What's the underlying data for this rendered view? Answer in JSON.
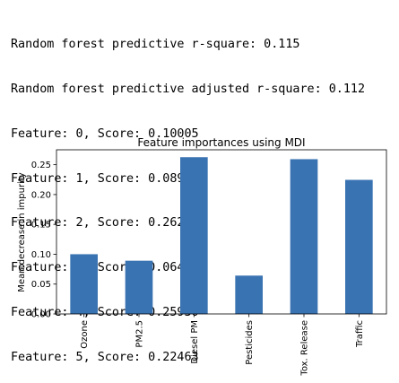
{
  "console_lines": [
    "Random forest predictive r-square: 0.115",
    "Random forest predictive adjusted r-square: 0.112",
    "Feature: 0, Score: 0.10005",
    "Feature: 1, Score: 0.08919",
    "Feature: 2, Score: 0.26262",
    "Feature: 3, Score: 0.06422",
    "Feature: 4, Score: 0.25930",
    "Feature: 5, Score: 0.22463"
  ],
  "chart_data": {
    "type": "bar",
    "title": "Feature importances using MDI",
    "xlabel": "",
    "ylabel": "Mean decrease in impurity",
    "categories": [
      "Ozone",
      "PM2.5",
      "Diesel PM",
      "Pesticides",
      "Tox. Release",
      "Traffic"
    ],
    "values": [
      0.10005,
      0.08919,
      0.26262,
      0.06422,
      0.2593,
      0.22463
    ],
    "ylim": [
      0,
      0.275
    ],
    "yticks": [
      "0.00",
      "0.05",
      "0.10",
      "0.15",
      "0.20",
      "0.25"
    ],
    "grid": false,
    "bar_color": "#3a73b2"
  }
}
